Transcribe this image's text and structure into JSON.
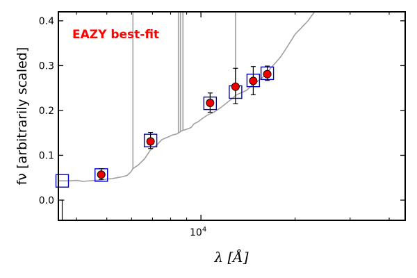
{
  "chart_data": {
    "type": "scatter",
    "title": "",
    "annotation": "EAZY best-fit",
    "annotation_color": "#ff0000",
    "xlabel": "λ [Å]",
    "ylabel": "fν [arbitrarily scaled]",
    "x_scale": "log",
    "xlim": [
      3500,
      45000
    ],
    "ylim": [
      -0.045,
      0.42
    ],
    "x_tick_major": {
      "value": 10000,
      "label": "10^4"
    },
    "x_tick_minor": [
      4000,
      5000,
      6000,
      7000,
      8000,
      9000,
      20000,
      30000,
      40000
    ],
    "y_ticks": [
      0.0,
      0.1,
      0.2,
      0.3,
      0.4
    ],
    "y_tick_labels": [
      "0.0",
      "0.1",
      "0.2",
      "0.3",
      "0.4"
    ],
    "series": [
      {
        "name": "EAZY best-fit template",
        "kind": "line",
        "color": "#a0a0a0",
        "x": [
          3500,
          3800,
          4000,
          4200,
          4400,
          4600,
          4800,
          5000,
          5200,
          5400,
          5600,
          5800,
          5950,
          6000,
          6050,
          6300,
          6600,
          6900,
          7200,
          7500,
          7800,
          8100,
          8400,
          8700,
          9000,
          9300,
          9500,
          9800,
          10100,
          10500,
          11000,
          11500,
          12000,
          12500,
          13000,
          13500,
          14000,
          14500,
          15000,
          15500,
          16000,
          16500,
          17000,
          17500,
          18000,
          19000,
          20000,
          21000,
          22000,
          23000
        ],
        "y": [
          0.043,
          0.043,
          0.044,
          0.042,
          0.043,
          0.044,
          0.045,
          0.047,
          0.048,
          0.05,
          0.052,
          0.055,
          0.062,
          0.065,
          0.07,
          0.078,
          0.092,
          0.112,
          0.122,
          0.135,
          0.14,
          0.145,
          0.148,
          0.155,
          0.158,
          0.162,
          0.17,
          0.175,
          0.182,
          0.19,
          0.196,
          0.205,
          0.215,
          0.225,
          0.235,
          0.24,
          0.245,
          0.255,
          0.262,
          0.27,
          0.278,
          0.29,
          0.3,
          0.31,
          0.32,
          0.345,
          0.37,
          0.385,
          0.4,
          0.42
        ]
      },
      {
        "name": "Template emission lines",
        "kind": "spikes",
        "color": "#a0a0a0",
        "x": [
          6060,
          8470,
          8600,
          8760,
          12900
        ],
        "y": [
          0.42,
          0.42,
          0.42,
          0.42,
          0.42
        ]
      },
      {
        "name": "Template band fluxes",
        "kind": "markers",
        "marker": "open-square",
        "color": "#0000cc",
        "x": [
          3600,
          4800,
          6900,
          10700,
          12900,
          14700,
          16300
        ],
        "y": [
          0.043,
          0.056,
          0.133,
          0.216,
          0.241,
          0.267,
          0.283
        ]
      },
      {
        "name": "Observed photometry",
        "kind": "markers",
        "marker": "filled-circle",
        "color": "#ee0000",
        "edge_color": "#000000",
        "x": [
          4800,
          6900,
          10700,
          12900,
          14700,
          16300
        ],
        "y": [
          0.057,
          0.131,
          0.217,
          0.253,
          0.266,
          0.281
        ],
        "err_low": [
          0.011,
          0.016,
          0.021,
          0.038,
          0.031,
          0.014
        ],
        "err_high": [
          0.013,
          0.02,
          0.022,
          0.041,
          0.032,
          0.018
        ]
      },
      {
        "name": "Upper limit",
        "kind": "errorbar-only",
        "color": "#000000",
        "x": [
          3600
        ],
        "y": [
          0.0
        ],
        "err_low": [
          0.055
        ],
        "err_high": [
          0.0
        ]
      }
    ],
    "legend": "none",
    "grid": false
  }
}
